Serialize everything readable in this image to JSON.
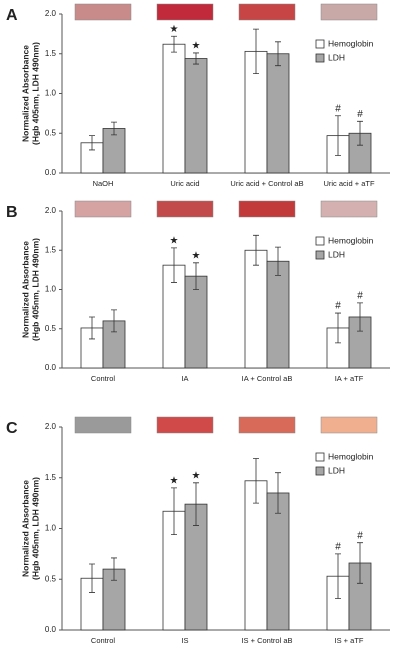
{
  "chart_data": [
    {
      "type": "bar",
      "label": "A",
      "ylabel": [
        "Normalized Absorbance",
        "(Hgb 405nm, LDH 490nm)"
      ],
      "categories": [
        "NaOH",
        "Uric acid",
        "Uric acid + Control aB",
        "Uric acid + aTF"
      ],
      "series": [
        {
          "name": "Hemoglobin",
          "color": "#ffffff",
          "values": [
            0.38,
            1.62,
            1.53,
            0.47
          ],
          "errors": [
            0.09,
            0.1,
            0.28,
            0.25
          ],
          "markers": [
            null,
            "★",
            null,
            "#"
          ]
        },
        {
          "name": "LDH",
          "color": "#a6a6a6",
          "values": [
            0.56,
            1.44,
            1.5,
            0.5
          ],
          "errors": [
            0.08,
            0.07,
            0.15,
            0.15
          ],
          "markers": [
            null,
            "★",
            null,
            "#"
          ]
        }
      ],
      "ylim": [
        0,
        2
      ],
      "yticks": [
        {
          "value": 0,
          "label": "0.0"
        },
        {
          "value": 0.5,
          "label": "0.5"
        },
        {
          "value": 1,
          "label": "1.0"
        },
        {
          "value": 1.5,
          "label": "1.5"
        },
        {
          "value": 2,
          "label": "2.0"
        }
      ],
      "legend": "upper right"
    },
    {
      "type": "bar",
      "label": "B",
      "ylabel": [
        "Normalized Absorbance",
        "(Hgb 405nm, LDH 490nm)"
      ],
      "categories": [
        "Control",
        "IA",
        "IA + Control aB",
        "IA + aTF"
      ],
      "series": [
        {
          "name": "Hemoglobin",
          "color": "#ffffff",
          "values": [
            0.51,
            1.31,
            1.5,
            0.51
          ],
          "errors": [
            0.14,
            0.22,
            0.19,
            0.19
          ],
          "markers": [
            null,
            "★",
            null,
            "#"
          ]
        },
        {
          "name": "LDH",
          "color": "#a6a6a6",
          "values": [
            0.6,
            1.17,
            1.36,
            0.65
          ],
          "errors": [
            0.14,
            0.17,
            0.18,
            0.18
          ],
          "markers": [
            null,
            "★",
            null,
            "#"
          ]
        }
      ],
      "ylim": [
        0,
        2
      ],
      "yticks": [
        {
          "value": 0,
          "label": "0.0"
        },
        {
          "value": 0.5,
          "label": "0.5"
        },
        {
          "value": 1,
          "label": "1.0"
        },
        {
          "value": 1.5,
          "label": "1.5"
        },
        {
          "value": 2,
          "label": "2.0"
        }
      ],
      "legend": "upper right"
    },
    {
      "type": "bar",
      "label": "C",
      "ylabel": [
        "Normalized Absorbance",
        "(Hgb 405nm, LDH 490nm)"
      ],
      "categories": [
        "Control",
        "IS",
        "IS + Control aB",
        "IS + aTF"
      ],
      "series": [
        {
          "name": "Hemoglobin",
          "color": "#ffffff",
          "values": [
            0.51,
            1.17,
            1.47,
            0.53
          ],
          "errors": [
            0.14,
            0.23,
            0.22,
            0.22
          ],
          "markers": [
            null,
            "★",
            null,
            "#"
          ]
        },
        {
          "name": "LDH",
          "color": "#a6a6a6",
          "values": [
            0.6,
            1.24,
            1.35,
            0.66
          ],
          "errors": [
            0.11,
            0.21,
            0.2,
            0.2
          ],
          "markers": [
            null,
            "★",
            null,
            "#"
          ]
        }
      ],
      "ylim": [
        0,
        2
      ],
      "yticks": [
        {
          "value": 0,
          "label": "0.0"
        },
        {
          "value": 0.5,
          "label": "0.5"
        },
        {
          "value": 1,
          "label": "1.0"
        },
        {
          "value": 1.5,
          "label": "1.5"
        },
        {
          "value": 2,
          "label": "2.0"
        }
      ],
      "legend": "upper right"
    }
  ]
}
